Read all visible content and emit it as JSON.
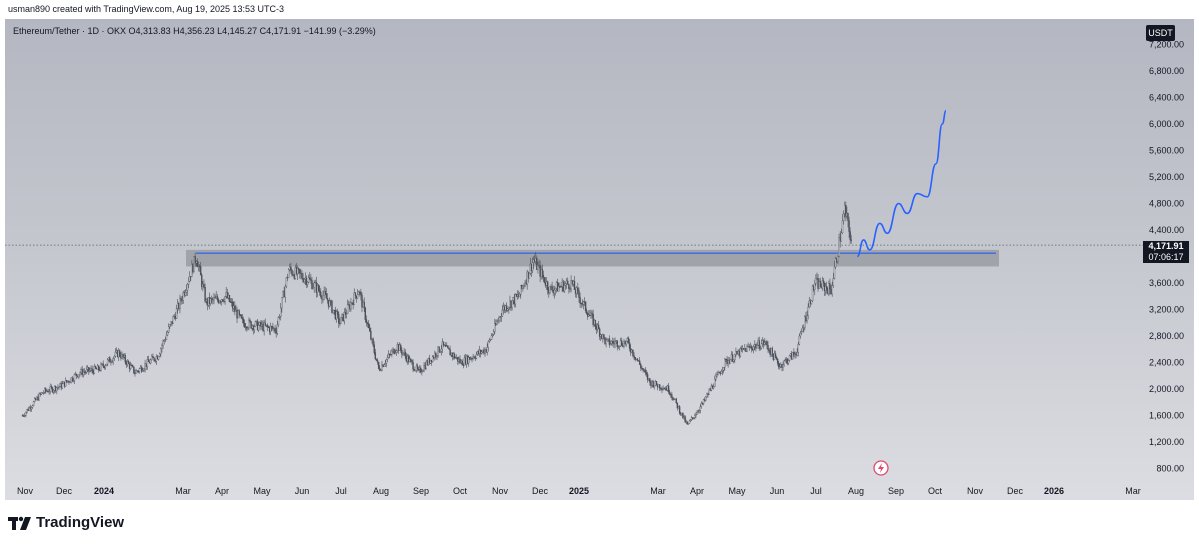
{
  "credit": "usman890 created with TradingView.com, Aug 19, 2025 13:53 UTC-3",
  "legend": "Ethereum/Tether · 1D · OKX  O4,313.83  H4,356.23  L4,145.27  C4,171.91  −141.99 (−3.29%)",
  "currency": "USDT",
  "price_tag": {
    "price": "4,171.91",
    "countdown": "07:06:17"
  },
  "brand": "TradingView",
  "colors": {
    "candles": "#4a4e58",
    "projection": "#2962ff",
    "resistance": "#3f6fe0",
    "zone": "#9a9ca4"
  },
  "chart_data": {
    "type": "line",
    "title": "Ethereum/Tether · 1D · OKX",
    "xlabel": "",
    "ylabel": "",
    "ylim": [
      600,
      7500
    ],
    "y_ticks": [
      "7,200.00",
      "6,800.00",
      "6,400.00",
      "6,000.00",
      "5,600.00",
      "5,200.00",
      "4,800.00",
      "4,400.00",
      "3,600.00",
      "3,200.00",
      "2,800.00",
      "2,400.00",
      "2,000.00",
      "1,600.00",
      "1,200.00",
      "800.00"
    ],
    "x_ticks": [
      {
        "label": "Nov",
        "bold": false
      },
      {
        "label": "Dec",
        "bold": false
      },
      {
        "label": "2024",
        "bold": true
      },
      {
        "label": "Mar",
        "bold": false
      },
      {
        "label": "Apr",
        "bold": false
      },
      {
        "label": "May",
        "bold": false
      },
      {
        "label": "Jun",
        "bold": false
      },
      {
        "label": "Jul",
        "bold": false
      },
      {
        "label": "Aug",
        "bold": false
      },
      {
        "label": "Sep",
        "bold": false
      },
      {
        "label": "Oct",
        "bold": false
      },
      {
        "label": "Nov",
        "bold": false
      },
      {
        "label": "Dec",
        "bold": false
      },
      {
        "label": "2025",
        "bold": true
      },
      {
        "label": "Mar",
        "bold": false
      },
      {
        "label": "Apr",
        "bold": false
      },
      {
        "label": "May",
        "bold": false
      },
      {
        "label": "Jun",
        "bold": false
      },
      {
        "label": "Jul",
        "bold": false
      },
      {
        "label": "Aug",
        "bold": false
      },
      {
        "label": "Sep",
        "bold": false
      },
      {
        "label": "Oct",
        "bold": false
      },
      {
        "label": "Nov",
        "bold": false
      },
      {
        "label": "Dec",
        "bold": false
      },
      {
        "label": "2026",
        "bold": true
      },
      {
        "label": "Mar",
        "bold": false
      }
    ],
    "series": [
      {
        "values_comment": "",
        "points": [
          [
            "2023-10-25",
            1600
          ],
          [
            "2023-11-10",
            1950
          ],
          [
            "2023-11-25",
            2050
          ],
          [
            "2023-12-10",
            2250
          ],
          [
            "2023-12-25",
            2300
          ],
          [
            "2024-01-10",
            2550
          ],
          [
            "2024-01-23",
            2250
          ],
          [
            "2024-02-10",
            2500
          ],
          [
            "2024-02-28",
            3300
          ],
          [
            "2024-03-12",
            4000
          ],
          [
            "2024-03-20",
            3300
          ],
          [
            "2024-04-05",
            3400
          ],
          [
            "2024-04-18",
            3000
          ],
          [
            "2024-05-01",
            2950
          ],
          [
            "2024-05-15",
            2900
          ],
          [
            "2024-05-25",
            3800
          ],
          [
            "2024-06-10",
            3650
          ],
          [
            "2024-06-25",
            3350
          ],
          [
            "2024-07-05",
            3000
          ],
          [
            "2024-07-20",
            3500
          ],
          [
            "2024-08-05",
            2300
          ],
          [
            "2024-08-20",
            2650
          ],
          [
            "2024-09-06",
            2250
          ],
          [
            "2024-09-25",
            2650
          ],
          [
            "2024-10-10",
            2400
          ],
          [
            "2024-10-30",
            2600
          ],
          [
            "2024-11-12",
            3200
          ],
          [
            "2024-11-25",
            3400
          ],
          [
            "2024-12-07",
            3950
          ],
          [
            "2024-12-20",
            3500
          ],
          [
            "2025-01-06",
            3600
          ],
          [
            "2025-01-15",
            3300
          ],
          [
            "2025-02-03",
            2700
          ],
          [
            "2025-02-20",
            2700
          ],
          [
            "2025-03-10",
            2100
          ],
          [
            "2025-03-25",
            2000
          ],
          [
            "2025-04-09",
            1450
          ],
          [
            "2025-04-22",
            1800
          ],
          [
            "2025-05-09",
            2400
          ],
          [
            "2025-05-25",
            2600
          ],
          [
            "2025-06-10",
            2700
          ],
          [
            "2025-06-22",
            2350
          ],
          [
            "2025-07-05",
            2550
          ],
          [
            "2025-07-20",
            3600
          ],
          [
            "2025-08-02",
            3500
          ],
          [
            "2025-08-13",
            4700
          ],
          [
            "2025-08-19",
            4172
          ]
        ]
      }
    ],
    "resistance_level": 4050,
    "resistance_zone": [
      3850,
      4100
    ],
    "projection": [
      [
        "2025-08-23",
        4000
      ],
      [
        "2025-08-28",
        4250
      ],
      [
        "2025-09-02",
        4100
      ],
      [
        "2025-09-10",
        4500
      ],
      [
        "2025-09-16",
        4350
      ],
      [
        "2025-09-25",
        4800
      ],
      [
        "2025-10-02",
        4650
      ],
      [
        "2025-10-10",
        4950
      ],
      [
        "2025-10-18",
        4900
      ],
      [
        "2025-10-25",
        5400
      ],
      [
        "2025-10-30",
        6000
      ],
      [
        "2025-11-02",
        6200
      ]
    ]
  }
}
